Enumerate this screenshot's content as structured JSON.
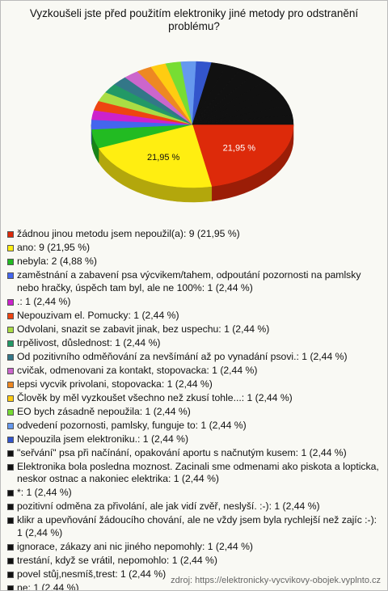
{
  "chart_data": {
    "type": "pie",
    "title": "Vyzkoušeli jste před použitím elektroniky jiné metody pro odstranění problému?",
    "categories": [
      "žádnou jinou metodu jsem nepoužil(a): 9 (21,95 %)",
      "ano: 9 (21,95 %)",
      "nebyla: 2 (4,88 %)",
      "zaměstnání a zabavení psa výcvikem/tahem, odpoutání pozornosti na pamlsky nebo hračky, úspěch tam byl, ale ne 100%: 1 (2,44 %)",
      ".: 1 (2,44 %)",
      "Nepouzivam el. Pomucky: 1 (2,44 %)",
      "Odvolani, snazit se zabavit jinak, bez uspechu: 1 (2,44 %)",
      "trpělivost, důslednost: 1 (2,44 %)",
      "Od pozitivního odměňování za nevšímání až po vynadání psovi.: 1 (2,44 %)",
      "cvičak, odmenovani za kontakt, stopovacka: 1 (2,44 %)",
      "lepsi vycvik privolani, stopovacka: 1 (2,44 %)",
      "Člověk by měl vyzkoušet všechno než zkusí tohle...: 1 (2,44 %)",
      "EO bych zásadně nepoužila: 1 (2,44 %)",
      "odvedení pozornosti, pamlsky, funguje to: 1 (2,44 %)",
      "Nepouzila jsem elektroniku.: 1 (2,44 %)",
      "\"seřvání\" psa při načínání, opakování aportu s načnutým kusem: 1 (2,44 %)",
      "Elektronika bola posledna moznost. Zacinali sme odmenami ako piskota a lopticka, neskor ostnac a nakoniec elektrika: 1 (2,44 %)",
      "*: 1 (2,44 %)",
      "pozitivní odměna za přivolání, ale jak vidí zvěř, neslyší. :-): 1 (2,44 %)",
      "klikr a upevňování žádoucího chování,  ale ne vždy jsem byla rychlejší než zajíc :-): 1 (2,44 %)",
      "ignorace, zákazy ani nic jiného nepomohly: 1 (2,44 %)",
      "trestání, když se vrátil, nepomohlo: 1 (2,44 %)",
      "povel stůj,nesmíš,trest: 1 (2,44 %)",
      "ne: 1 (2,44 %)"
    ],
    "values": [
      9,
      9,
      2,
      1,
      1,
      1,
      1,
      1,
      1,
      1,
      1,
      1,
      1,
      1,
      1,
      1,
      1,
      1,
      1,
      1,
      1,
      1,
      1,
      1
    ],
    "colors": [
      "#dd2a0a",
      "#ffee11",
      "#22bb22",
      "#4466ee",
      "#cc22cc",
      "#ee4411",
      "#aadd44",
      "#229966",
      "#337788",
      "#cc66cc",
      "#ee8822",
      "#ffcc11",
      "#77dd33",
      "#6699ee",
      "#3355cc",
      "#111111",
      "#111111",
      "#111111",
      "#111111",
      "#111111",
      "#111111",
      "#111111",
      "#111111",
      "#111111"
    ],
    "slice_labels": [
      {
        "value": 21.95,
        "label": "21,95 %"
      },
      {
        "value": 21.95,
        "label": "21,95 %"
      }
    ],
    "source": "zdroj: https://elektronicky-vycvikovy-obojek.vyplnto.cz"
  }
}
